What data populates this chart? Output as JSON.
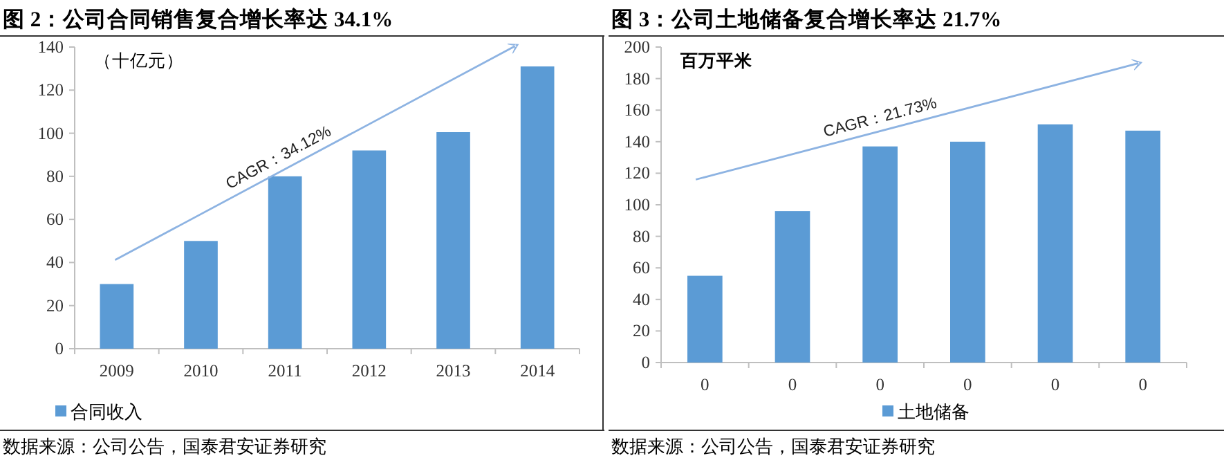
{
  "chart_data": [
    {
      "type": "bar",
      "title": "图 2：公司合同销售复合增长率达 34.1%",
      "ylabel": "（十亿元）",
      "categories": [
        "2009",
        "2010",
        "2011",
        "2012",
        "2013",
        "2014"
      ],
      "series": [
        {
          "name": "合同收入",
          "color": "#5b9bd5",
          "values": [
            30,
            50,
            80,
            92,
            100.5,
            131
          ]
        }
      ],
      "ylim": [
        0,
        140
      ],
      "yticks": [
        0,
        20,
        40,
        60,
        80,
        100,
        120,
        140
      ],
      "legend": "bottom left",
      "annotations": [
        "CAGR：34.12%",
        "数据来源：公司公告，国泰君安证券研究"
      ]
    },
    {
      "type": "bar",
      "title": "图 3：公司土地储备复合增长率达 21.7%",
      "ylabel": "百万平米",
      "categories": [
        "0",
        "0",
        "0",
        "0",
        "0",
        "0"
      ],
      "series": [
        {
          "name": "土地储备",
          "color": "#5b9bd5",
          "values": [
            55,
            96,
            137,
            140,
            151,
            147
          ]
        }
      ],
      "ylim": [
        0,
        200
      ],
      "yticks": [
        0,
        20,
        40,
        60,
        80,
        100,
        120,
        140,
        160,
        180,
        200
      ],
      "legend": "bottom",
      "annotations": [
        "CAGR：21.73%",
        "数据来源：公司公告，国泰君安证券研究"
      ]
    }
  ]
}
